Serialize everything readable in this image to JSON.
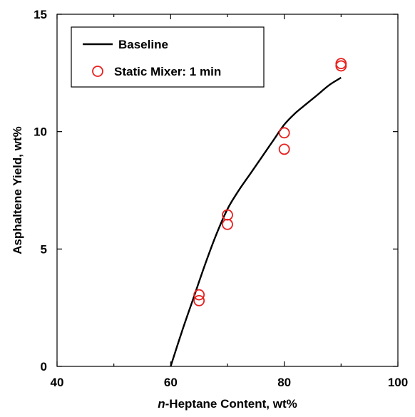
{
  "chart_data": {
    "type": "scatter",
    "title": "",
    "xlabel": {
      "italic_prefix": "n",
      "rest": "-Heptane Content, wt%"
    },
    "ylabel": "Asphaltene Yield, wt%",
    "xlim": [
      40,
      100
    ],
    "ylim": [
      0,
      15
    ],
    "x_ticks": [
      40,
      60,
      80,
      100
    ],
    "x_minor_ticks": [
      50,
      70,
      90
    ],
    "y_ticks": [
      0,
      5,
      10,
      15
    ],
    "grid": false,
    "legend_placement": "top-left",
    "series": [
      {
        "name": "Baseline",
        "kind": "line",
        "color": "#000000",
        "points": [
          [
            60.0,
            0.0
          ],
          [
            62.0,
            1.5
          ],
          [
            64.0,
            2.9
          ],
          [
            66.0,
            4.3
          ],
          [
            68.0,
            5.6
          ],
          [
            70.0,
            6.7
          ],
          [
            72.0,
            7.5
          ],
          [
            74.0,
            8.2
          ],
          [
            76.0,
            8.9
          ],
          [
            78.0,
            9.6
          ],
          [
            80.0,
            10.3
          ],
          [
            82.0,
            10.8
          ],
          [
            84.0,
            11.2
          ],
          [
            86.0,
            11.6
          ],
          [
            88.0,
            12.0
          ],
          [
            90.0,
            12.3
          ]
        ]
      },
      {
        "name": "Static Mixer: 1 min",
        "kind": "scatter",
        "marker": "open-circle",
        "color": "#e8201d",
        "points": [
          [
            65.0,
            3.05
          ],
          [
            65.0,
            2.8
          ],
          [
            70.0,
            6.45
          ],
          [
            70.0,
            6.05
          ],
          [
            80.0,
            9.95
          ],
          [
            80.0,
            9.25
          ],
          [
            90.0,
            12.9
          ],
          [
            90.0,
            12.8
          ]
        ]
      }
    ]
  }
}
